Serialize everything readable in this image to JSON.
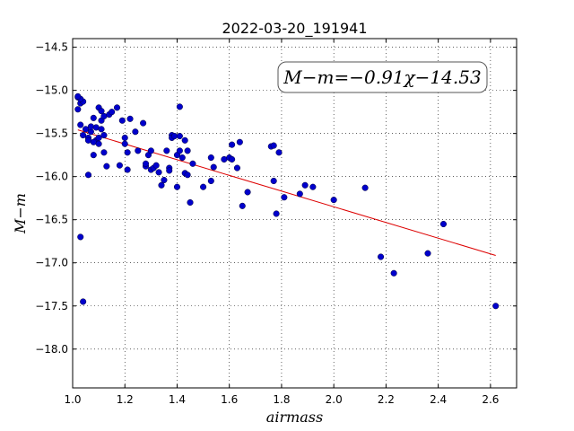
{
  "chart_data": {
    "type": "scatter",
    "title": "2022-03-20_191941",
    "xlabel": "airmass",
    "ylabel": "M−m",
    "xlim": [
      1.0,
      2.7
    ],
    "ylim": [
      -14.4,
      -18.45
    ],
    "y_inverted": true,
    "grid": true,
    "x_ticks": [
      1.0,
      1.2,
      1.4,
      1.6,
      1.8,
      2.0,
      2.2,
      2.4,
      2.6
    ],
    "x_tick_labels": [
      "1.0",
      "1.2",
      "1.4",
      "1.6",
      "1.8",
      "2.0",
      "2.2",
      "2.4",
      "2.6"
    ],
    "y_ticks": [
      -14.5,
      -15.0,
      -15.5,
      -16.0,
      -16.5,
      -17.0,
      -17.5,
      -18.0
    ],
    "y_tick_labels": [
      "−14.5",
      "−15.0",
      "−15.5",
      "−16.0",
      "−16.5",
      "−17.0",
      "−17.5",
      "−18.0"
    ],
    "annotation": "M−m=−0.91χ−14.53",
    "fit": {
      "slope": -0.91,
      "intercept": -14.53,
      "x_range": [
        1.02,
        2.62
      ],
      "color": "#dd0000"
    },
    "point_color": "#0000cc",
    "series": [
      {
        "x": [
          1.02,
          1.03,
          1.02,
          1.04,
          1.03,
          1.03,
          1.04,
          1.05,
          1.06,
          1.06,
          1.07,
          1.06,
          1.07,
          1.08,
          1.08,
          1.09,
          1.08,
          1.09,
          1.1,
          1.1,
          1.1,
          1.11,
          1.11,
          1.11,
          1.12,
          1.12,
          1.12,
          1.13,
          1.14,
          1.15,
          1.17,
          1.18,
          1.19,
          1.2,
          1.2,
          1.21,
          1.21,
          1.22,
          1.24,
          1.25,
          1.27,
          1.28,
          1.28,
          1.29,
          1.3,
          1.3,
          1.31,
          1.32,
          1.33,
          1.34,
          1.35,
          1.36,
          1.37,
          1.37,
          1.38,
          1.38,
          1.39,
          1.4,
          1.4,
          1.41,
          1.41,
          1.41,
          1.42,
          1.43,
          1.43,
          1.44,
          1.44,
          1.45,
          1.46,
          1.5,
          1.53,
          1.53,
          1.54,
          1.58,
          1.6,
          1.61,
          1.61,
          1.63,
          1.64,
          1.65,
          1.67,
          1.76,
          1.77,
          1.77,
          1.78,
          1.79,
          1.81,
          1.87,
          1.89,
          1.92,
          2.0,
          2.12,
          2.18,
          2.23,
          2.36,
          2.42,
          2.62,
          1.03,
          1.04,
          1.02
        ],
        "y": [
          -15.22,
          -15.15,
          -15.08,
          -15.13,
          -15.4,
          -16.7,
          -17.45,
          -15.45,
          -15.55,
          -15.98,
          -15.48,
          -15.58,
          -15.42,
          -15.32,
          -15.75,
          -15.58,
          -15.6,
          -15.43,
          -15.2,
          -15.55,
          -15.62,
          -15.24,
          -15.35,
          -15.45,
          -15.3,
          -15.52,
          -15.72,
          -15.88,
          -15.28,
          -15.25,
          -15.2,
          -15.87,
          -15.35,
          -15.55,
          -15.62,
          -15.72,
          -15.92,
          -15.33,
          -15.48,
          -15.7,
          -15.38,
          -15.88,
          -15.85,
          -15.75,
          -15.7,
          -15.92,
          -15.9,
          -15.87,
          -15.95,
          -16.1,
          -16.04,
          -15.7,
          -15.9,
          -15.93,
          -15.52,
          -15.55,
          -15.53,
          -15.75,
          -16.12,
          -15.7,
          -15.53,
          -15.19,
          -15.78,
          -15.58,
          -15.96,
          -15.7,
          -15.98,
          -16.3,
          -15.85,
          -16.12,
          -15.78,
          -16.05,
          -15.89,
          -15.8,
          -15.78,
          -15.8,
          -15.63,
          -15.9,
          -15.6,
          -16.34,
          -16.18,
          -15.65,
          -15.64,
          -16.05,
          -16.43,
          -15.72,
          -16.24,
          -16.2,
          -16.1,
          -16.12,
          -16.27,
          -16.13,
          -16.93,
          -17.12,
          -16.89,
          -16.55,
          -17.5,
          -15.1,
          -15.52,
          -15.07
        ]
      }
    ]
  }
}
